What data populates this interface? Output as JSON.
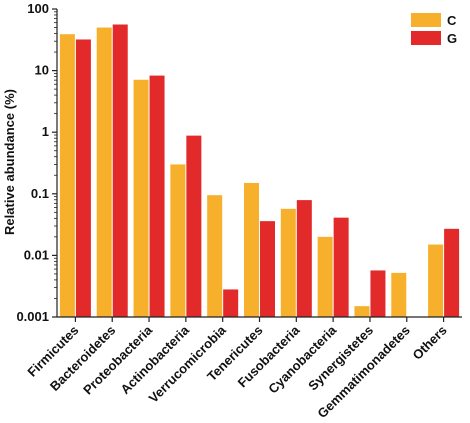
{
  "chart_data": {
    "type": "bar",
    "ylabel": "Relative abundance (%)",
    "yscale": "log",
    "ylim": [
      0.001,
      100
    ],
    "yticks": [
      "0.001",
      "0.01",
      "0.1",
      "1",
      "10",
      "100"
    ],
    "legend_position": "top-right",
    "categories": [
      "Firmicutes",
      "Bacteroidetes",
      "Proteobacteria",
      "Actinobacteria",
      "Verrucomicrobia",
      "Tenericutes",
      "Fusobacteria",
      "Cyanobacteria",
      "Synergistetes",
      "Gemmatimonadetes",
      "Others"
    ],
    "series": [
      {
        "name": "C",
        "color": "#F7B02B",
        "values": [
          39,
          50,
          7.1,
          0.3,
          0.095,
          0.15,
          0.057,
          0.02,
          0.0015,
          0.0052,
          0.015
        ]
      },
      {
        "name": "G",
        "color": "#E32A2A",
        "values": [
          32,
          56,
          8.3,
          0.88,
          0.0028,
          0.036,
          0.079,
          0.041,
          0.0057,
          0.001,
          0.027
        ]
      }
    ]
  }
}
